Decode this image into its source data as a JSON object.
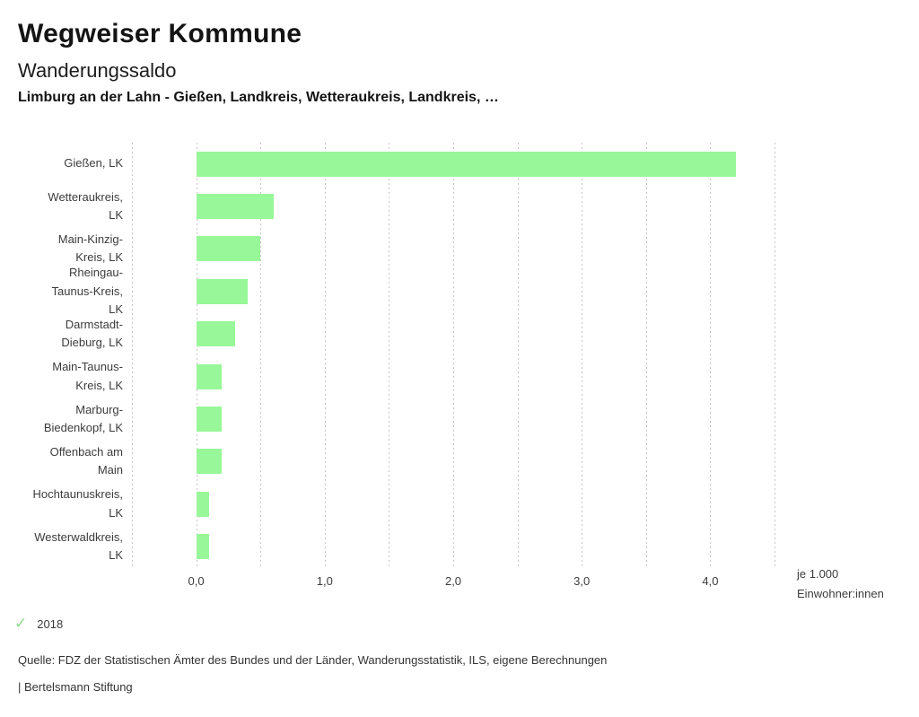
{
  "header": {
    "title": "Wegweiser Kommune",
    "subtitle": "Wanderungssaldo",
    "comparison": "Limburg an der Lahn - Gießen, Landkreis, Wetteraukreis, Landkreis, …"
  },
  "chart_data": {
    "type": "bar",
    "orientation": "horizontal",
    "title": "Wanderungssaldo",
    "subtitle": "Limburg an der Lahn - Gießen, Landkreis, Wetteraukreis, Landkreis, …",
    "categories": [
      "Gießen, LK",
      "Wetteraukreis, LK",
      "Main-Kinzig-Kreis, LK",
      "Rheingau-Taunus-Kreis, LK",
      "Darmstadt-Dieburg, LK",
      "Main-Taunus-Kreis, LK",
      "Marburg-Biedenkopf, LK",
      "Offenbach am Main",
      "Hochtaunuskreis, LK",
      "Westerwaldkreis, LK"
    ],
    "category_label_lines": [
      [
        "Gießen, LK"
      ],
      [
        "Wetteraukreis,",
        "LK"
      ],
      [
        "Main-Kinzig-",
        "Kreis, LK"
      ],
      [
        "Rheingau-",
        "Taunus-Kreis,",
        "LK"
      ],
      [
        "Darmstadt-",
        "Dieburg, LK"
      ],
      [
        "Main-Taunus-",
        "Kreis, LK"
      ],
      [
        "Marburg-",
        "Biedenkopf, LK"
      ],
      [
        "Offenbach am",
        "Main"
      ],
      [
        "Hochtaunuskreis,",
        "LK"
      ],
      [
        "Westerwaldkreis,",
        "LK"
      ]
    ],
    "series": [
      {
        "name": "2018",
        "values": [
          4.2,
          0.6,
          0.5,
          0.4,
          0.3,
          0.2,
          0.2,
          0.2,
          0.1,
          0.1
        ]
      }
    ],
    "xlim": [
      -0.5,
      4.5
    ],
    "gridline_step": 0.5,
    "grid": "vertical-dotted",
    "x_ticks": [
      {
        "value": 0,
        "label": "0,0"
      },
      {
        "value": 1,
        "label": "1,0"
      },
      {
        "value": 2,
        "label": "2,0"
      },
      {
        "value": 3,
        "label": "3,0"
      },
      {
        "value": 4,
        "label": "4,0"
      }
    ],
    "unit": [
      "je 1.000",
      "Einwohner:innen"
    ],
    "bar_color": "#98f798",
    "legend_position": "bottom-left"
  },
  "legend": {
    "check_icon": "✓",
    "check_color": "#8edc8e",
    "year": "2018"
  },
  "footer": {
    "source": "Quelle: FDZ der Statistischen Ämter des Bundes und der Länder, Wanderungsstatistik, ILS, eigene Berechnungen",
    "branding": "| Bertelsmann Stiftung"
  }
}
